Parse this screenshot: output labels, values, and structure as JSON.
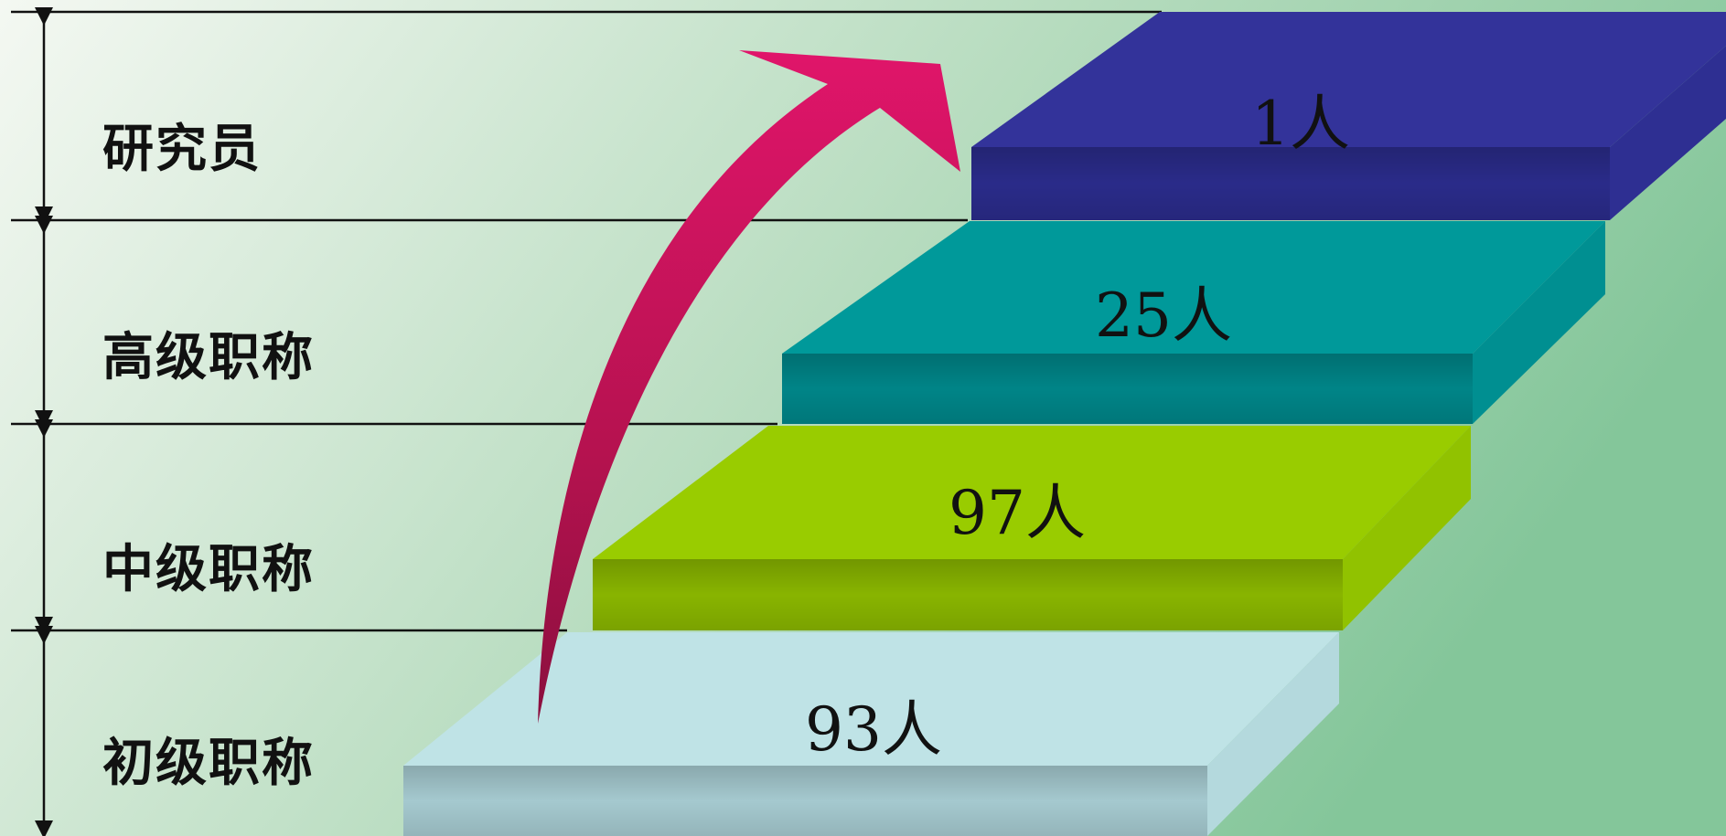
{
  "colors": {
    "background_start": "#f2f7f1",
    "background_end": "#86c79b",
    "arrow": "#d0145e",
    "line": "#111111",
    "step_top": [
      "#33339a",
      "#00999a",
      "#99cc00",
      "#bfe3e6"
    ],
    "step_front": [
      "#2b2c8c",
      "#00878a",
      "#8bb800",
      "#a8cdd3"
    ],
    "step_side": [
      "#2e2f92",
      "#008f91",
      "#91c200",
      "#b4d9dd"
    ]
  },
  "levels": [
    {
      "label": "研究员",
      "count": "1人"
    },
    {
      "label": "高级职称",
      "count": "25人"
    },
    {
      "label": "中级职称",
      "count": "97人"
    },
    {
      "label": "初级职称",
      "count": "93人"
    }
  ]
}
